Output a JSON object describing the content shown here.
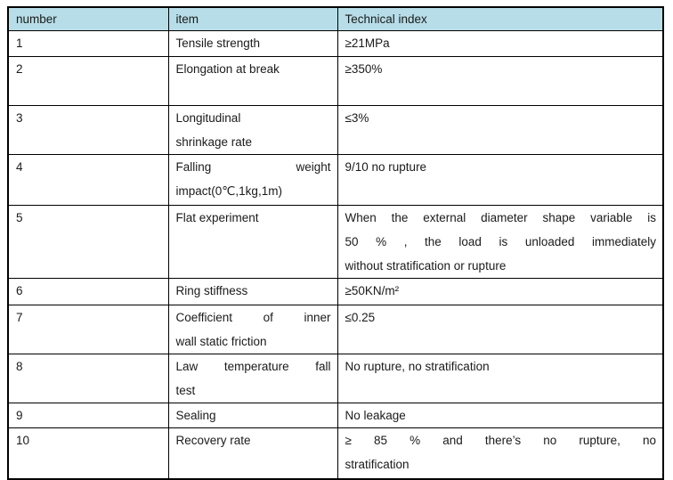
{
  "colors": {
    "header_bg": "#b7dee8",
    "border": "#000000",
    "text": "#1a1a1a"
  },
  "table": {
    "headers": {
      "number": "number",
      "item": "item",
      "index": "Technical index"
    },
    "rows": [
      {
        "number": "1",
        "item": [
          "Tensile strength"
        ],
        "index": [
          "≥21MPa"
        ]
      },
      {
        "number": "2",
        "item": [
          "Elongation at break"
        ],
        "index": [
          "≥350%"
        ]
      },
      {
        "number": "3",
        "item": [
          "Longitudinal",
          "shrinkage rate"
        ],
        "index": [
          "≤3%"
        ]
      },
      {
        "number": "4",
        "item": [
          "Falling weight",
          "impact(0℃,1kg,1m)"
        ],
        "index": [
          "9/10 no rupture"
        ]
      },
      {
        "number": "5",
        "item": [
          "Flat experiment"
        ],
        "index": [
          "When the external diameter shape variable is",
          "50 % , the load is unloaded immediately",
          "without stratification or rupture"
        ]
      },
      {
        "number": "6",
        "item": [
          "Ring stiffness"
        ],
        "index": [
          "≥50KN/m²"
        ]
      },
      {
        "number": "7",
        "item": [
          "Coefficient of inner",
          "wall static friction"
        ],
        "index": [
          "≤0.25"
        ]
      },
      {
        "number": "8",
        "item": [
          "Law temperature fall",
          "test"
        ],
        "index": [
          "No rupture, no stratification"
        ]
      },
      {
        "number": "9",
        "item": [
          "Sealing"
        ],
        "index": [
          "No leakage"
        ]
      },
      {
        "number": "10",
        "item": [
          "Recovery rate"
        ],
        "index": [
          "≥ 85 % and there’s no rupture, no",
          "stratification"
        ]
      }
    ]
  }
}
